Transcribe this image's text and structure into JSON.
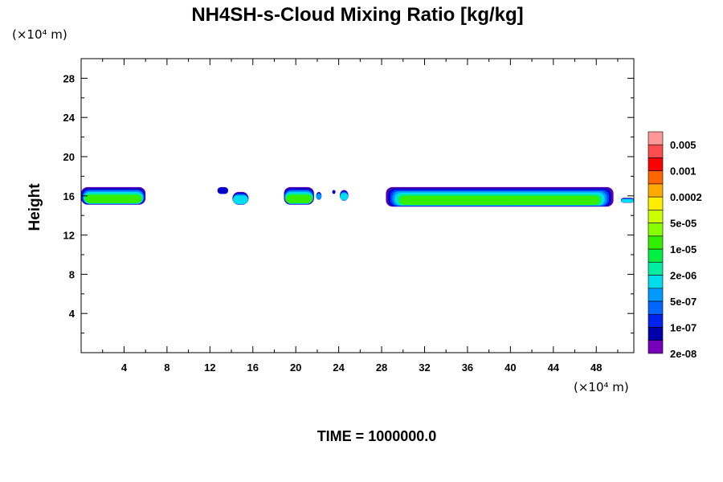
{
  "chart_data": {
    "type": "heatmap",
    "title": "NH4SH-s-Cloud Mixing Ratio [kg/kg]",
    "ylabel": "Height",
    "x_unit": "(×10⁴ m)",
    "y_unit": "(×10⁴ m)",
    "xlim": [
      0,
      51.5
    ],
    "ylim": [
      0,
      30
    ],
    "x_ticks": [
      4,
      8,
      12,
      16,
      20,
      24,
      28,
      32,
      36,
      40,
      44,
      48
    ],
    "y_ticks": [
      4,
      8,
      12,
      16,
      20,
      24,
      28
    ],
    "time_label": "TIME = 1000000.0",
    "colorbar": {
      "labels": [
        "0.005",
        "0.001",
        "0.0002",
        "5e-05",
        "1e-05",
        "2e-06",
        "5e-07",
        "1e-07",
        "2e-08"
      ],
      "colors": [
        "#ff9999",
        "#ff4d4d",
        "#ff0000",
        "#ff6600",
        "#ffaa00",
        "#ffee00",
        "#ccff00",
        "#88ff00",
        "#33ee00",
        "#00ee44",
        "#00eea0",
        "#00ddee",
        "#0099ff",
        "#0066ff",
        "#0022ee",
        "#0000aa",
        "#7700bb"
      ]
    },
    "cloud_patches": [
      {
        "x0": 0.0,
        "x1": 6.0,
        "y_bottom": 15.1,
        "y_top": 16.9,
        "core_value": "1e-05"
      },
      {
        "x0": 12.7,
        "x1": 13.7,
        "y_bottom": 16.2,
        "y_top": 16.9,
        "core_value": "2e-08"
      },
      {
        "x0": 14.1,
        "x1": 15.6,
        "y_bottom": 15.1,
        "y_top": 16.4,
        "core_value": "5e-07"
      },
      {
        "x0": 18.9,
        "x1": 21.7,
        "y_bottom": 15.1,
        "y_top": 16.9,
        "core_value": "1e-05"
      },
      {
        "x0": 21.9,
        "x1": 22.4,
        "y_bottom": 15.6,
        "y_top": 16.4,
        "core_value": "1e-07"
      },
      {
        "x0": 23.4,
        "x1": 23.7,
        "y_bottom": 16.2,
        "y_top": 16.6,
        "core_value": "2e-08"
      },
      {
        "x0": 24.1,
        "x1": 24.9,
        "y_bottom": 15.5,
        "y_top": 16.6,
        "core_value": "5e-07"
      },
      {
        "x0": 28.4,
        "x1": 49.6,
        "y_bottom": 14.9,
        "y_top": 16.9,
        "core_value": "1e-05"
      },
      {
        "x0": 50.3,
        "x1": 51.5,
        "y_bottom": 15.3,
        "y_top": 15.8,
        "core_value": "5e-07"
      }
    ]
  }
}
